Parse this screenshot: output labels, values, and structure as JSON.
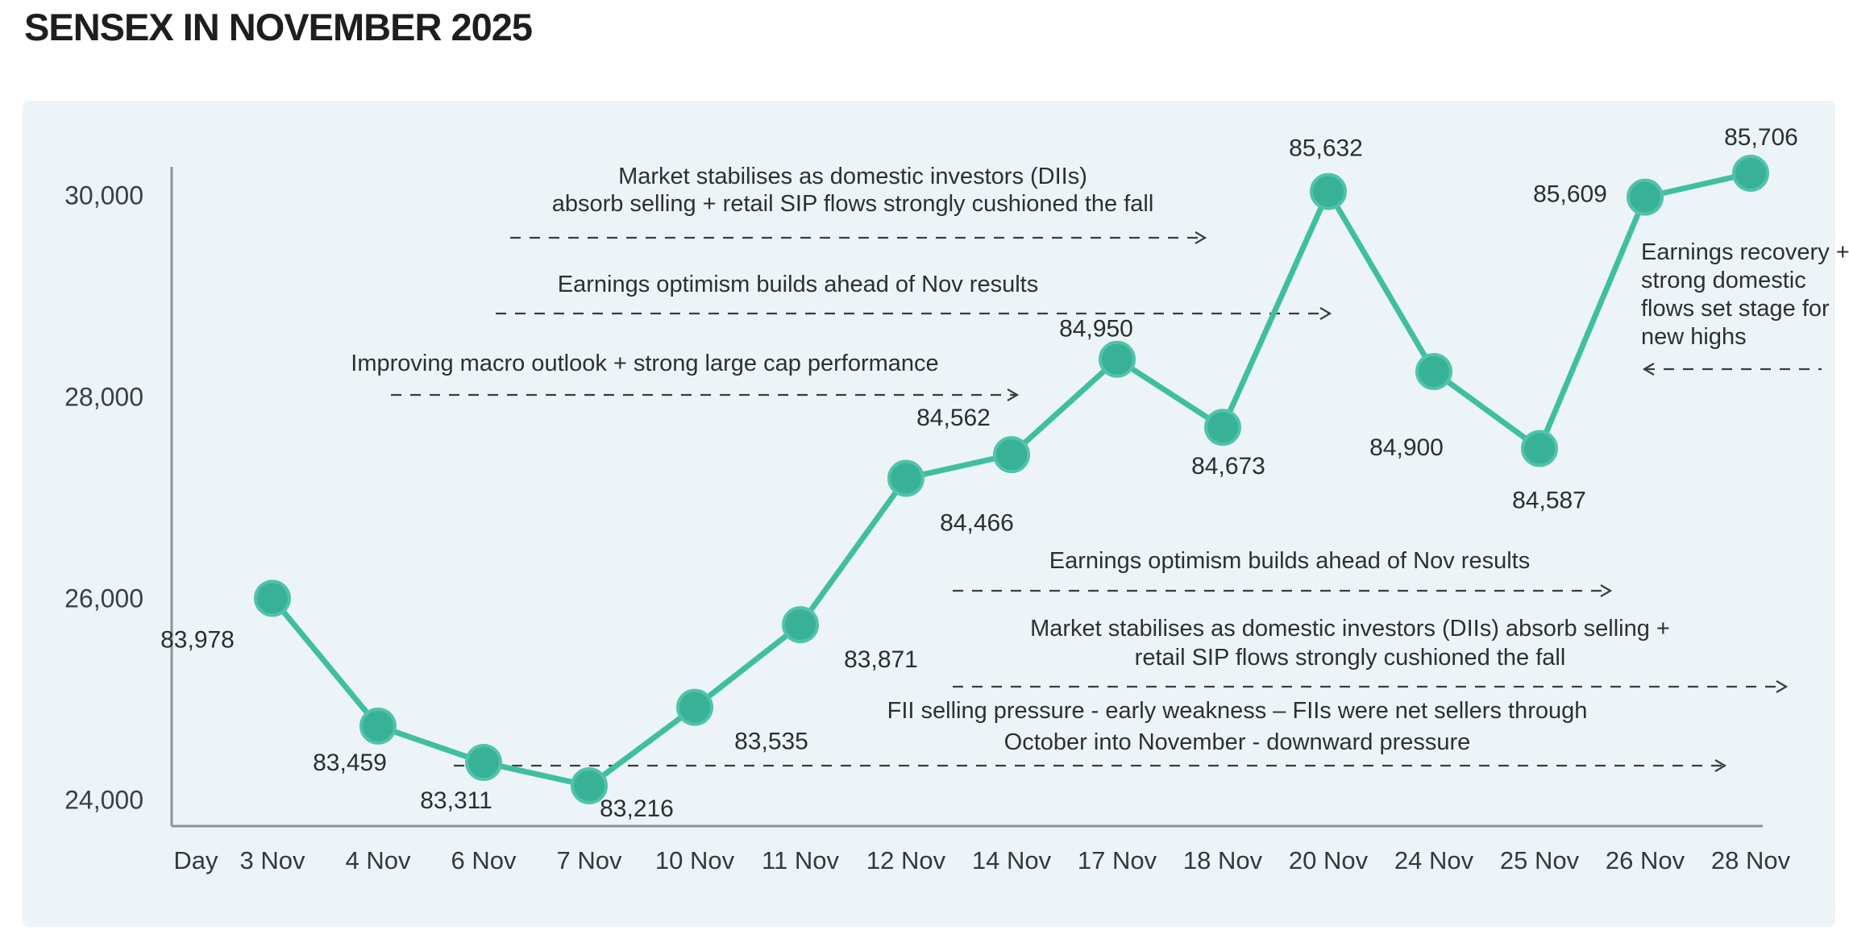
{
  "title": "SENSEX IN NOVEMBER 2025",
  "colors": {
    "page_bg": "#ffffff",
    "panel_bg": "#ecf4f8",
    "line": "#40bfa0",
    "dot_fill": "#37b296",
    "dot_rim": "#52c3a9",
    "axis": "#8e9397",
    "arrow": "#3c3c3c",
    "title_text": "#1e1e1e",
    "label_text": "#2c2e30"
  },
  "chart_data": {
    "type": "line",
    "title": "SENSEX IN NOVEMBER 2025",
    "x_axis_label": "Day",
    "categories": [
      "3 Nov",
      "4 Nov",
      "6 Nov",
      "7 Nov",
      "10 Nov",
      "11 Nov",
      "12 Nov",
      "14 Nov",
      "17 Nov",
      "18 Nov",
      "20 Nov",
      "24 Nov",
      "25 Nov",
      "26 Nov",
      "28 Nov"
    ],
    "values": [
      83978,
      83459,
      83311,
      83216,
      83535,
      83871,
      84466,
      84562,
      84950,
      84673,
      85632,
      84900,
      84587,
      85609,
      85706
    ],
    "point_labels": [
      "83,978",
      "83,459",
      "83,311",
      "83,216",
      "83,535",
      "83,871",
      "84,466",
      "84,562",
      "84,950",
      "84,673",
      "85,632",
      "84,900",
      "84,587",
      "85,609",
      "85,706"
    ],
    "y_tick_labels": [
      "30,000",
      "28,000",
      "26,000",
      "24,000"
    ],
    "y_tick_values": [
      30000,
      28000,
      26000,
      24000
    ],
    "grid": false,
    "legend": "none",
    "annotations": [
      {
        "id": "dii-cushion-top",
        "lines": [
          "Market stabilises as domestic investors (DIIs)",
          "absorb selling + retail SIP flows strongly cushioned the fall"
        ],
        "arrow": "right"
      },
      {
        "id": "earnings-optimism-top",
        "lines": [
          "Earnings optimism builds ahead of Nov results"
        ],
        "arrow": "right"
      },
      {
        "id": "macro-outlook",
        "lines": [
          "Improving macro outlook + strong large cap performance"
        ],
        "arrow": "right"
      },
      {
        "id": "earnings-recovery",
        "lines": [
          "Earnings recovery +",
          "strong domestic",
          "flows set stage for",
          "new highs"
        ],
        "arrow": "left"
      },
      {
        "id": "earnings-optimism-bottom",
        "lines": [
          "Earnings optimism builds ahead of Nov results"
        ],
        "arrow": "right"
      },
      {
        "id": "dii-cushion-bottom",
        "lines": [
          "Market stabilises as domestic investors (DIIs) absorb selling +",
          "retail SIP flows strongly cushioned the fall"
        ],
        "arrow": "right"
      },
      {
        "id": "fii-selling",
        "lines": [
          "FII selling pressure - early weakness – FIIs were net sellers through",
          "October into November - downward pressure"
        ],
        "arrow": "right"
      }
    ]
  }
}
